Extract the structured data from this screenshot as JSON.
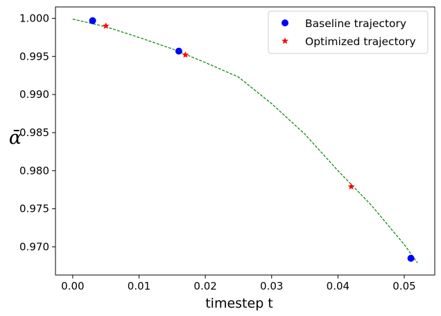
{
  "chart_data": {
    "type": "scatter",
    "xlabel": "timestep t",
    "ylabel": "ᾱ",
    "xlim": [
      -0.0026,
      0.0546
    ],
    "ylim": [
      0.9663,
      1.0015
    ],
    "x_ticks": [
      0.0,
      0.01,
      0.02,
      0.03,
      0.04,
      0.05
    ],
    "x_tick_labels": [
      "0.00",
      "0.01",
      "0.02",
      "0.03",
      "0.04",
      "0.05"
    ],
    "y_ticks": [
      0.97,
      0.975,
      0.98,
      0.985,
      0.99,
      0.995,
      1.0
    ],
    "y_tick_labels": [
      "0.970",
      "0.975",
      "0.980",
      "0.985",
      "0.990",
      "0.995",
      "1.000"
    ],
    "grid": false,
    "legend_position": "top-right",
    "curve": {
      "style": "dashed",
      "color": "#008000",
      "x": [
        0.0,
        0.005,
        0.01,
        0.015,
        0.02,
        0.025,
        0.03,
        0.035,
        0.04,
        0.045,
        0.05,
        0.052
      ],
      "y": [
        0.9999,
        0.9989,
        0.9975,
        0.996,
        0.9942,
        0.9923,
        0.9888,
        0.9848,
        0.98,
        0.9755,
        0.9703,
        0.9679
      ]
    },
    "series": [
      {
        "name": "Baseline trajectory",
        "marker": "circle",
        "color": "#0000ff",
        "x": [
          0.003,
          0.016,
          0.051
        ],
        "y": [
          0.9997,
          0.9957,
          0.9685
        ]
      },
      {
        "name": "Optimized trajectory",
        "marker": "star",
        "color": "#ff0000",
        "x": [
          0.005,
          0.017,
          0.042
        ],
        "y": [
          0.999,
          0.9952,
          0.9779
        ]
      }
    ]
  }
}
